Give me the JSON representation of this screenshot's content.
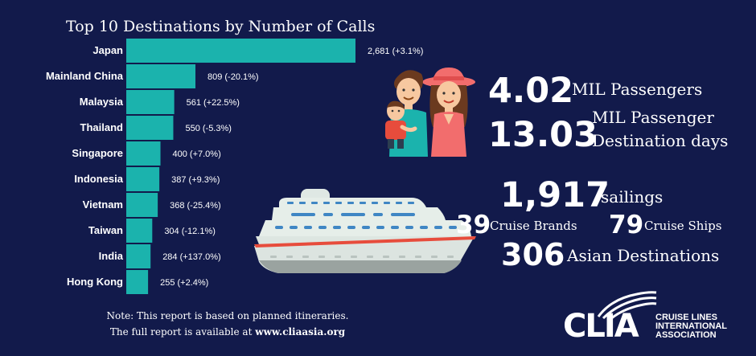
{
  "chart_data": {
    "type": "bar",
    "orientation": "horizontal",
    "title": "Top 10 Destinations by Number of Calls",
    "categories": [
      "Japan",
      "Mainland China",
      "Malaysia",
      "Thailand",
      "Singapore",
      "Indonesia",
      "Vietnam",
      "Taiwan",
      "India",
      "Hong Kong"
    ],
    "values": [
      2681,
      809,
      561,
      550,
      400,
      387,
      368,
      304,
      284,
      255
    ],
    "data_labels": [
      "2,681 (+3.1%)",
      "809 (-20.1%)",
      "561 (+22.5%)",
      "550 (-5.3%)",
      "400 (+7.0%)",
      "387 (+9.3%)",
      "368 (-25.4%)",
      "304 (-12.1%)",
      "284 (+137.0%)",
      "255 (+2.4%)"
    ],
    "bar_color": "#1bb3ad",
    "grid": false,
    "legend": "none"
  },
  "stats": {
    "passengers_value": "4.02",
    "passengers_label": "MIL Passengers",
    "days_value": "13.03",
    "days_label_1": "MIL Passenger",
    "days_label_2": "Destination days",
    "sailings_value": "1,917",
    "sailings_label": "sailings",
    "brands_value": "39",
    "brands_label": "Cruise Brands",
    "ships_value": "79",
    "ships_label": "Cruise Ships",
    "destinations_value": "306",
    "destinations_label": "Asian Destinations"
  },
  "note": {
    "line1": "Note: This report is based on planned itineraries.",
    "line2_prefix": "The full report is available at ",
    "line2_link": "www.cliaasia.org"
  },
  "logo": {
    "wordmark": "CLIA",
    "org_line1": "CRUISE LINES",
    "org_line2": "INTERNATIONAL",
    "org_line3": "ASSOCIATION"
  },
  "colors": {
    "background": "#121a4b",
    "bar": "#1bb3ad",
    "text": "#ffffff"
  },
  "icons": [
    "family-illustration",
    "cruise-ship-illustration",
    "clia-logo"
  ]
}
